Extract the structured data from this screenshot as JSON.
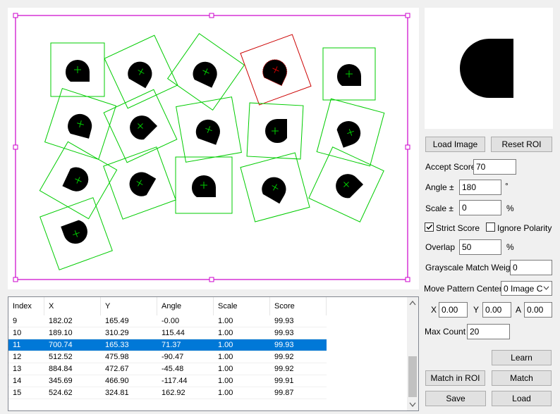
{
  "buttons": {
    "load_image": "Load Image",
    "reset_roi": "Reset ROI",
    "learn": "Learn",
    "match_in_roi": "Match in ROI",
    "match": "Match",
    "save": "Save",
    "load": "Load"
  },
  "params": {
    "accept_score_label": "Accept Score",
    "accept_score": "70",
    "angle_label": "Angle ±",
    "angle": "180",
    "angle_unit": "°",
    "scale_label": "Scale ±",
    "scale": "0",
    "scale_unit": "%",
    "strict_score_label": "Strict Score",
    "strict_score_checked": true,
    "ignore_polarity_label": "Ignore Polarity",
    "ignore_polarity_checked": false,
    "overlap_label": "Overlap",
    "overlap": "50",
    "overlap_unit": "%",
    "grayscale_label": "Grayscale Match Weight",
    "grayscale": "0",
    "move_center_label": "Move Pattern Center",
    "move_center_value": "0 Image C",
    "x_label": "X",
    "x": "0.00",
    "y_label": "Y",
    "y": "0.00",
    "a_label": "A",
    "a": "0.00",
    "max_count_label": "Max Count",
    "max_count": "20"
  },
  "table": {
    "headers": [
      "Index",
      "X",
      "Y",
      "Angle",
      "Scale",
      "Score"
    ],
    "rows": [
      [
        "9",
        "182.02",
        "165.49",
        "-0.00",
        "1.00",
        "99.93"
      ],
      [
        "10",
        "189.10",
        "310.29",
        "115.44",
        "1.00",
        "99.93"
      ],
      [
        "11",
        "700.74",
        "165.33",
        "71.37",
        "1.00",
        "99.93"
      ],
      [
        "12",
        "512.52",
        "475.98",
        "-90.47",
        "1.00",
        "99.92"
      ],
      [
        "13",
        "884.84",
        "472.67",
        "-45.48",
        "1.00",
        "99.92"
      ],
      [
        "14",
        "345.69",
        "466.90",
        "-117.44",
        "1.00",
        "99.91"
      ],
      [
        "15",
        "524.62",
        "324.81",
        "162.92",
        "1.00",
        "99.87"
      ]
    ],
    "selected_index": 2
  },
  "colors": {
    "match_box": "#00cc00",
    "selected_match": "#cc0000",
    "roi": "#cc00cc",
    "shape": "#000000"
  }
}
